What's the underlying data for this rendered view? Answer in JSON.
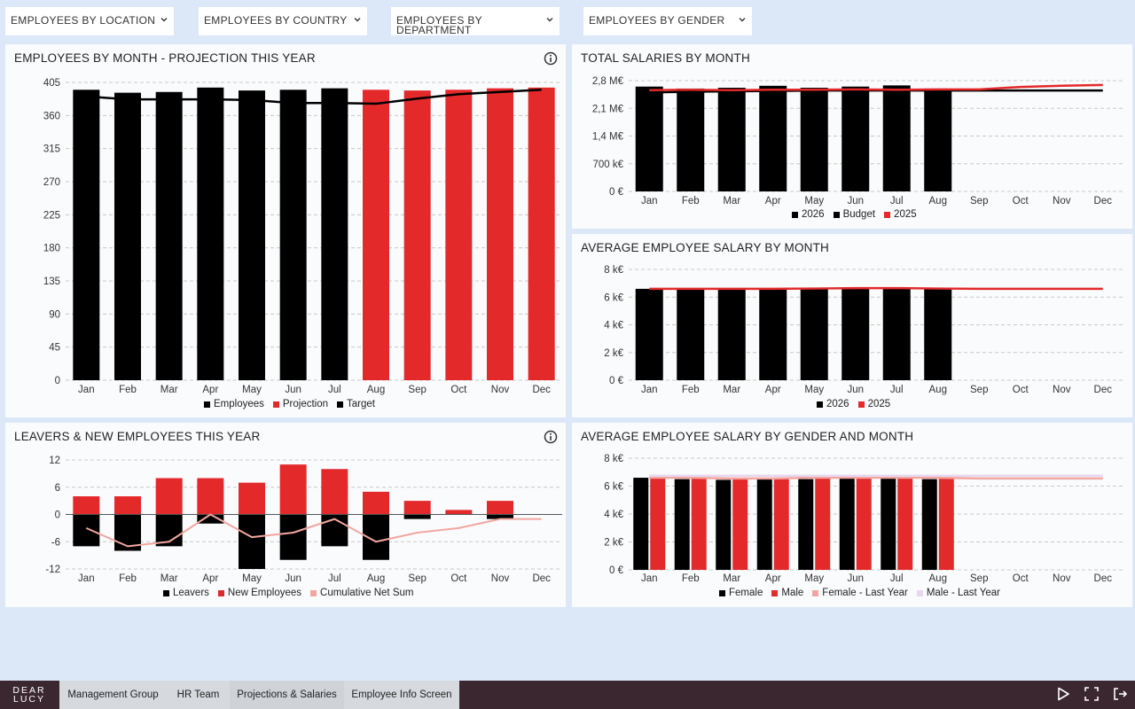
{
  "filters": [
    {
      "label": "EMPLOYEES BY LOCATION"
    },
    {
      "label": "EMPLOYEES BY COUNTRY"
    },
    {
      "label": "EMPLOYEES BY DEPARTMENT"
    },
    {
      "label": "EMPLOYEES BY GENDER"
    }
  ],
  "colors": {
    "black": "#000000",
    "red": "#e3292a",
    "pink": "#f2a6a0",
    "lavender": "#e7d8f0",
    "grid": "#c8c8c8"
  },
  "months": [
    "Jan",
    "Feb",
    "Mar",
    "Apr",
    "May",
    "Jun",
    "Jul",
    "Aug",
    "Sep",
    "Oct",
    "Nov",
    "Dec"
  ],
  "panels": {
    "employees_by_month": {
      "title": "EMPLOYEES BY MONTH - PROJECTION THIS YEAR",
      "legend": [
        "Employees",
        "Projection",
        "Target"
      ]
    },
    "total_salaries": {
      "title": "TOTAL SALARIES BY MONTH",
      "legend": [
        "2026",
        "Budget",
        "2025"
      ]
    },
    "avg_salary": {
      "title": "AVERAGE EMPLOYEE SALARY BY MONTH",
      "legend": [
        "2026",
        "2025"
      ]
    },
    "leavers": {
      "title": "LEAVERS & NEW EMPLOYEES THIS YEAR",
      "legend": [
        "Leavers",
        "New Employees",
        "Cumulative Net Sum"
      ]
    },
    "avg_gender": {
      "title": "AVERAGE EMPLOYEE SALARY BY GENDER AND MONTH",
      "legend": [
        "Female",
        "Male",
        "Female - Last Year",
        "Male - Last Year"
      ]
    }
  },
  "chart_data": [
    {
      "type": "bar",
      "title": "EMPLOYEES BY MONTH - PROJECTION THIS YEAR",
      "categories": [
        "Jan",
        "Feb",
        "Mar",
        "Apr",
        "May",
        "Jun",
        "Jul",
        "Aug",
        "Sep",
        "Oct",
        "Nov",
        "Dec"
      ],
      "ylim": [
        0,
        405
      ],
      "yticks": [
        "0",
        "45",
        "90",
        "135",
        "180",
        "225",
        "270",
        "315",
        "360",
        "405"
      ],
      "series": [
        {
          "name": "Employees",
          "kind": "bar",
          "values": [
            395,
            391,
            392,
            398,
            394,
            395,
            397,
            392,
            null,
            null,
            null,
            null
          ]
        },
        {
          "name": "Projection",
          "kind": "bar",
          "values": [
            null,
            null,
            null,
            null,
            null,
            null,
            null,
            395,
            394,
            395,
            397,
            398
          ]
        },
        {
          "name": "Target",
          "kind": "line",
          "values": [
            386,
            382,
            382,
            382,
            381,
            377,
            377,
            376,
            383,
            389,
            392,
            395
          ]
        }
      ]
    },
    {
      "type": "bar",
      "title": "TOTAL SALARIES BY MONTH",
      "categories": [
        "Jan",
        "Feb",
        "Mar",
        "Apr",
        "May",
        "Jun",
        "Jul",
        "Aug",
        "Sep",
        "Oct",
        "Nov",
        "Dec"
      ],
      "ylim": [
        0,
        2800
      ],
      "yticks": [
        "0 €",
        "700 k€",
        "1,4 M€",
        "2,1 M€",
        "2,8 M€"
      ],
      "series": [
        {
          "name": "2026",
          "kind": "bar",
          "values": [
            2650,
            2600,
            2620,
            2670,
            2620,
            2650,
            2680,
            2600,
            null,
            null,
            null,
            null
          ]
        },
        {
          "name": "Budget",
          "kind": "line",
          "values": [
            2500,
            2520,
            2530,
            2540,
            2550,
            2550,
            2550,
            2550,
            2550,
            2550,
            2550,
            2550
          ]
        },
        {
          "name": "2025",
          "kind": "line",
          "values": [
            2560,
            2570,
            2560,
            2570,
            2570,
            2580,
            2570,
            2580,
            2580,
            2640,
            2670,
            2690
          ]
        }
      ]
    },
    {
      "type": "bar",
      "title": "AVERAGE EMPLOYEE SALARY BY MONTH",
      "categories": [
        "Jan",
        "Feb",
        "Mar",
        "Apr",
        "May",
        "Jun",
        "Jul",
        "Aug",
        "Sep",
        "Oct",
        "Nov",
        "Dec"
      ],
      "ylim": [
        0,
        8
      ],
      "yticks": [
        "0 €",
        "2 k€",
        "4 k€",
        "6 k€",
        "8 k€"
      ],
      "series": [
        {
          "name": "2026",
          "kind": "bar",
          "values": [
            6.6,
            6.55,
            6.55,
            6.6,
            6.6,
            6.6,
            6.65,
            6.6,
            null,
            null,
            null,
            null
          ]
        },
        {
          "name": "2025",
          "kind": "line",
          "values": [
            6.6,
            6.6,
            6.6,
            6.6,
            6.62,
            6.65,
            6.65,
            6.62,
            6.6,
            6.6,
            6.6,
            6.6
          ]
        }
      ]
    },
    {
      "type": "bar",
      "title": "LEAVERS & NEW EMPLOYEES THIS YEAR",
      "categories": [
        "Jan",
        "Feb",
        "Mar",
        "Apr",
        "May",
        "Jun",
        "Jul",
        "Aug",
        "Sep",
        "Oct",
        "Nov",
        "Dec"
      ],
      "ylim": [
        -12,
        12
      ],
      "yticks": [
        "-12",
        "-6",
        "0",
        "6",
        "12"
      ],
      "series": [
        {
          "name": "Leavers",
          "kind": "bar",
          "values": [
            -7,
            -8,
            -7,
            -2,
            -12,
            -10,
            -7,
            -10,
            -1,
            0,
            -1,
            null
          ]
        },
        {
          "name": "New Employees",
          "kind": "bar",
          "values": [
            4,
            4,
            8,
            8,
            7,
            11,
            10,
            5,
            3,
            1,
            3,
            null
          ]
        },
        {
          "name": "Cumulative Net Sum",
          "kind": "line",
          "values": [
            -3,
            -7,
            -6,
            0,
            -5,
            -4,
            -1,
            -6,
            -4,
            -3,
            -1,
            -1
          ]
        }
      ]
    },
    {
      "type": "bar",
      "title": "AVERAGE EMPLOYEE SALARY BY GENDER AND MONTH",
      "categories": [
        "Jan",
        "Feb",
        "Mar",
        "Apr",
        "May",
        "Jun",
        "Jul",
        "Aug",
        "Sep",
        "Oct",
        "Nov",
        "Dec"
      ],
      "ylim": [
        0,
        8
      ],
      "yticks": [
        "0 €",
        "2 k€",
        "4 k€",
        "6 k€",
        "8 k€"
      ],
      "series": [
        {
          "name": "Female",
          "kind": "bar",
          "values": [
            6.6,
            6.5,
            6.45,
            6.5,
            6.5,
            6.55,
            6.55,
            6.5,
            null,
            null,
            null,
            null
          ]
        },
        {
          "name": "Male",
          "kind": "bar",
          "values": [
            6.6,
            6.6,
            6.6,
            6.6,
            6.6,
            6.6,
            6.6,
            6.6,
            null,
            null,
            null,
            null
          ]
        },
        {
          "name": "Female - Last Year",
          "kind": "line",
          "values": [
            6.6,
            6.6,
            6.55,
            6.55,
            6.6,
            6.6,
            6.6,
            6.6,
            6.55,
            6.55,
            6.55,
            6.55
          ]
        },
        {
          "name": "Male - Last Year",
          "kind": "line",
          "values": [
            6.75,
            6.75,
            6.75,
            6.75,
            6.75,
            6.75,
            6.75,
            6.75,
            6.75,
            6.75,
            6.75,
            6.75
          ]
        }
      ]
    }
  ],
  "bottom": {
    "logo_line1": "DEAR",
    "logo_line2": "LUCY",
    "tabs": [
      "Management Group",
      "HR Team",
      "Projections & Salaries",
      "Employee Info Screen"
    ]
  }
}
